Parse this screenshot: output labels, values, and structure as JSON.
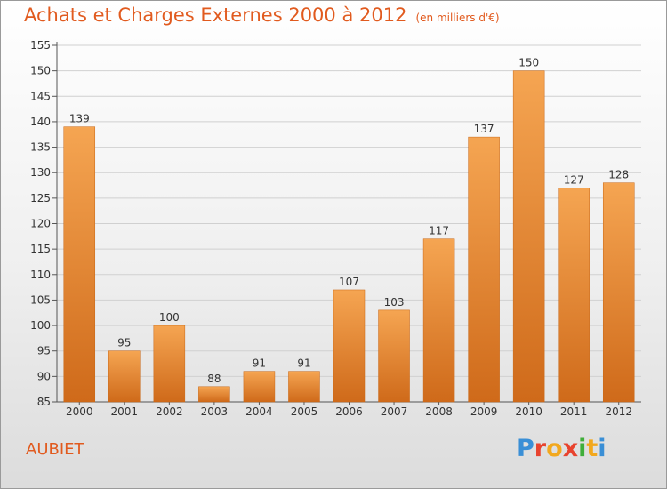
{
  "header": {
    "title": "Achats et Charges Externes 2000 à 2012",
    "subtitle": "(en milliers d'€)"
  },
  "footer": {
    "commune": "AUBIET",
    "brand": "Proxiti"
  },
  "colors": {
    "accent": "#e15a1e",
    "bar_top": "#f5a552",
    "bar_bottom": "#cf6a1a"
  },
  "chart_data": {
    "type": "bar",
    "categories": [
      "2000",
      "2001",
      "2002",
      "2003",
      "2004",
      "2005",
      "2006",
      "2007",
      "2008",
      "2009",
      "2010",
      "2011",
      "2012"
    ],
    "values": [
      139,
      95,
      100,
      88,
      91,
      91,
      107,
      103,
      117,
      137,
      150,
      127,
      128
    ],
    "ylim": [
      85,
      155
    ],
    "yticks": [
      85,
      90,
      95,
      100,
      105,
      110,
      115,
      120,
      125,
      130,
      135,
      140,
      145,
      150,
      155
    ],
    "grid": true,
    "title": "Achats et Charges Externes 2000 à 2012",
    "xlabel": "",
    "ylabel": ""
  }
}
